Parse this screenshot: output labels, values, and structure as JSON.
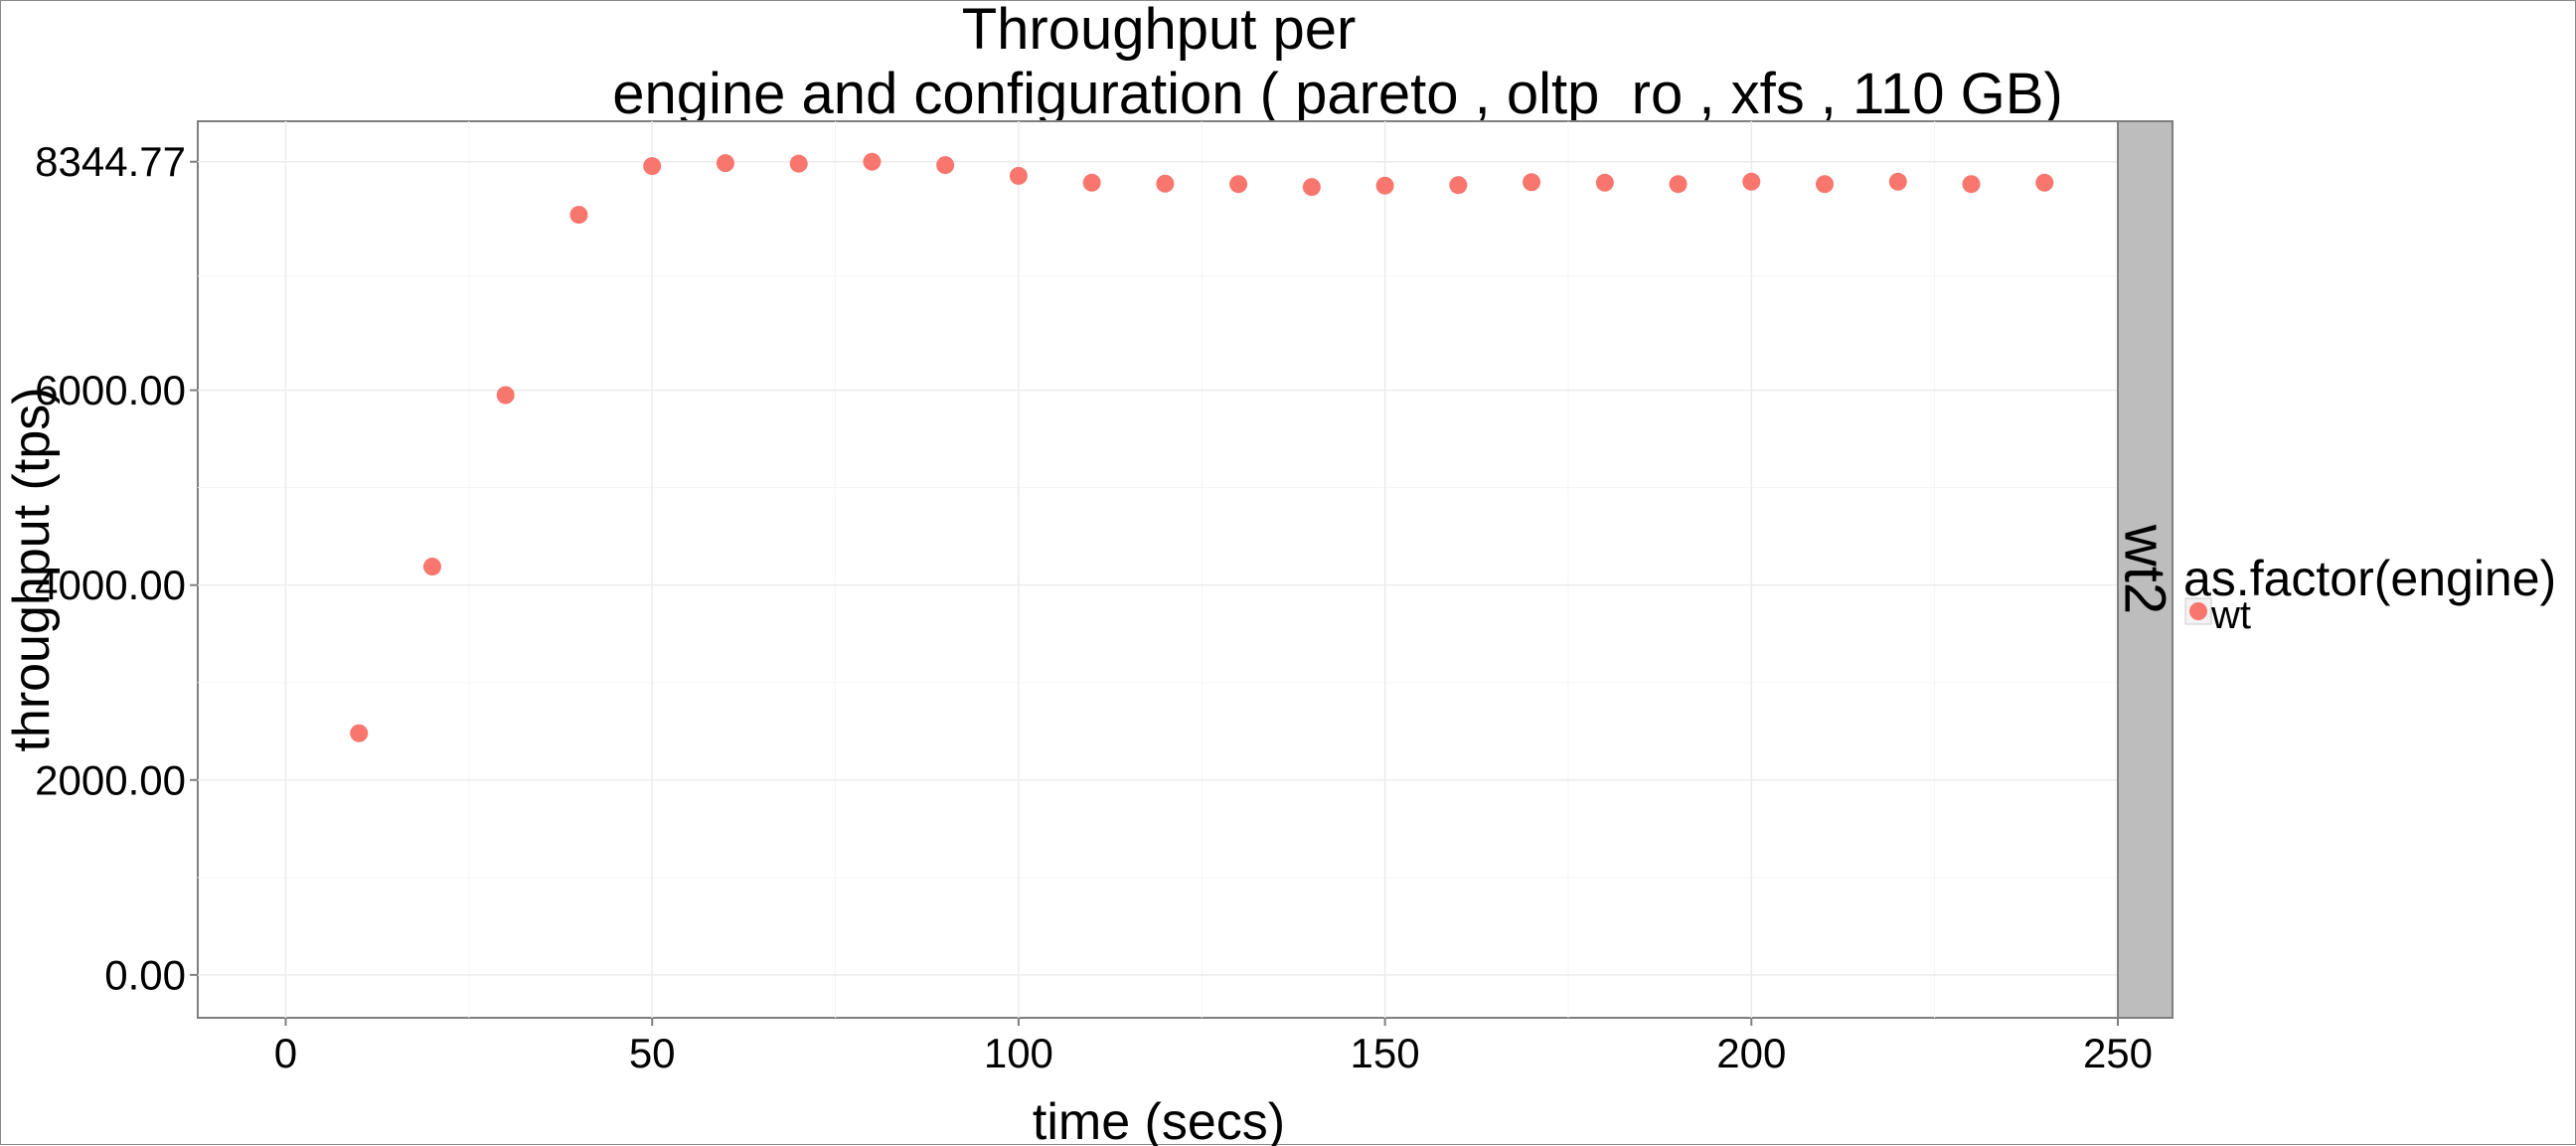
{
  "chart_data": {
    "type": "scatter",
    "title_line1": "Throughput per",
    "title_line2": "engine and configuration ( pareto , oltp_ro , xfs ,  110 GB)",
    "xlabel": "time (secs)",
    "ylabel": "throughput (tps)",
    "xlim": [
      -12,
      250
    ],
    "ylim": [
      -440,
      8760
    ],
    "x_ticks": [
      0,
      50,
      100,
      150,
      200,
      250
    ],
    "x_tick_labels": [
      "0",
      "50",
      "100",
      "150",
      "200",
      "250"
    ],
    "y_ticks": [
      0,
      2000,
      4000,
      6000,
      8344.77
    ],
    "y_tick_labels": [
      "0.00",
      "2000.00",
      "4000.00",
      "6000.00",
      "8344.77"
    ],
    "facet_label": "wt2",
    "legend": {
      "title": "as.factor(engine)",
      "items": [
        {
          "label": "wt",
          "color": "#F8766D"
        }
      ]
    },
    "grid": true,
    "series": [
      {
        "name": "wt",
        "color": "#F8766D",
        "x": [
          10,
          20,
          30,
          40,
          50,
          60,
          70,
          80,
          90,
          100,
          110,
          120,
          130,
          140,
          150,
          160,
          170,
          180,
          190,
          200,
          210,
          220,
          230,
          240
        ],
        "y": [
          2480,
          4190,
          5950,
          7800,
          8300,
          8330,
          8325,
          8345,
          8310,
          8200,
          8130,
          8120,
          8115,
          8085,
          8100,
          8105,
          8135,
          8130,
          8115,
          8140,
          8115,
          8140,
          8115,
          8130
        ]
      }
    ]
  }
}
